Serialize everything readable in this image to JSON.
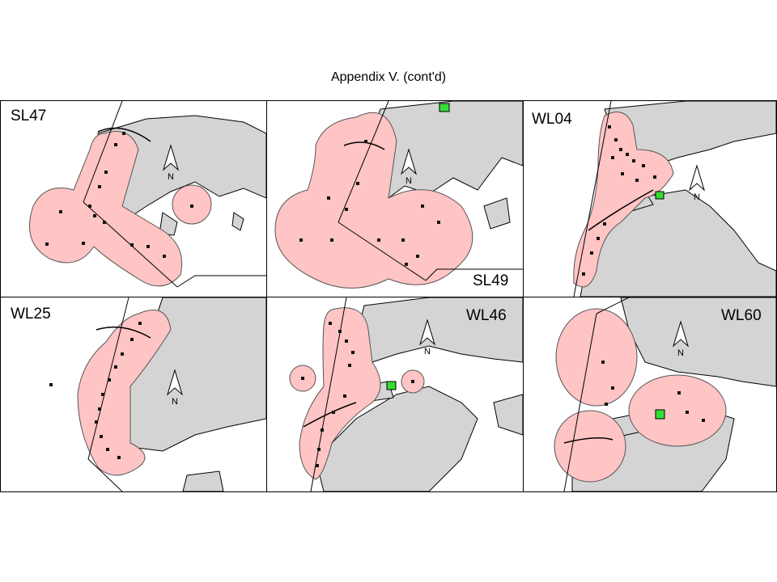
{
  "page_title": "Appendix V.  (cont'd)",
  "north_label": "N",
  "colors": {
    "land": "#d4d4d4",
    "land_stroke": "#000000",
    "home_range": "#ffc4c4",
    "home_range_stroke": "#555555",
    "release_site": "#33dd33",
    "relocation_point": "#111111"
  },
  "panels": [
    {
      "id": "SL47",
      "label": "SL47"
    },
    {
      "id": "SL49",
      "label": "SL49"
    },
    {
      "id": "WL04",
      "label": "WL04"
    },
    {
      "id": "WL25",
      "label": "WL25"
    },
    {
      "id": "WL46",
      "label": "WL46"
    },
    {
      "id": "WL60",
      "label": "WL60"
    }
  ]
}
